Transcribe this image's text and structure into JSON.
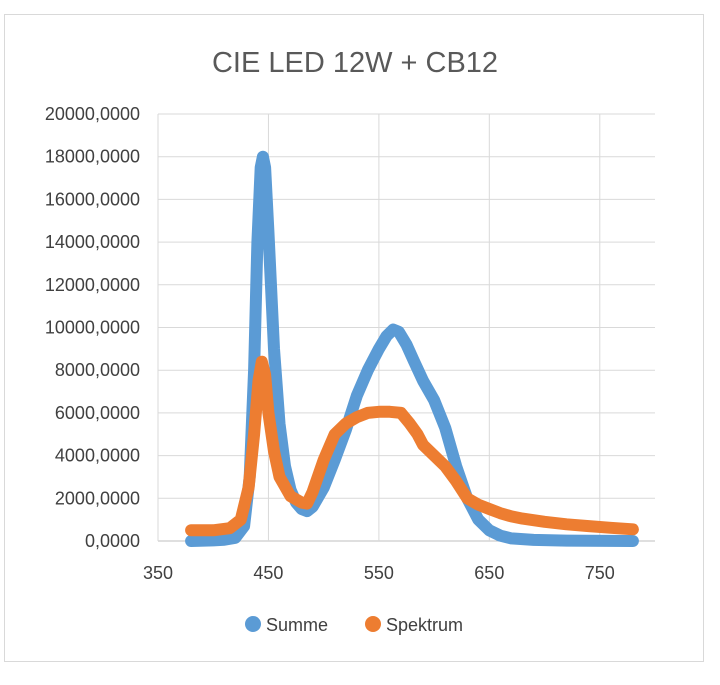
{
  "chart_data": {
    "type": "line",
    "title": "CIE LED 12W + CB12",
    "xlabel": "",
    "ylabel": "",
    "xlim": [
      350,
      800
    ],
    "ylim": [
      0,
      20000
    ],
    "x_ticks": [
      350,
      450,
      550,
      650,
      750
    ],
    "x_tick_labels": [
      "350",
      "450",
      "550",
      "650",
      "750"
    ],
    "y_ticks": [
      0,
      2000,
      4000,
      6000,
      8000,
      10000,
      12000,
      14000,
      16000,
      18000,
      20000
    ],
    "y_tick_labels": [
      "0,0000",
      "2000,0000",
      "4000,0000",
      "6000,0000",
      "8000,0000",
      "10000,0000",
      "12000,0000",
      "14000,0000",
      "16000,0000",
      "18000,0000",
      "20000,0000"
    ],
    "grid": true,
    "legend_position": "bottom",
    "series": [
      {
        "name": "Summe",
        "color": "#5b9bd5",
        "points": [
          [
            380,
            0
          ],
          [
            400,
            30
          ],
          [
            410,
            60
          ],
          [
            420,
            150
          ],
          [
            428,
            700
          ],
          [
            433,
            3000
          ],
          [
            437,
            8000
          ],
          [
            440,
            14000
          ],
          [
            443,
            17500
          ],
          [
            445,
            18000
          ],
          [
            447,
            17500
          ],
          [
            450,
            14500
          ],
          [
            455,
            9000
          ],
          [
            460,
            5500
          ],
          [
            465,
            3500
          ],
          [
            470,
            2400
          ],
          [
            475,
            1800
          ],
          [
            480,
            1500
          ],
          [
            485,
            1400
          ],
          [
            490,
            1600
          ],
          [
            500,
            2500
          ],
          [
            510,
            3800
          ],
          [
            520,
            5200
          ],
          [
            530,
            6800
          ],
          [
            540,
            8000
          ],
          [
            550,
            9000
          ],
          [
            557,
            9600
          ],
          [
            563,
            9900
          ],
          [
            568,
            9800
          ],
          [
            575,
            9200
          ],
          [
            582,
            8400
          ],
          [
            590,
            7500
          ],
          [
            600,
            6600
          ],
          [
            610,
            5300
          ],
          [
            620,
            3500
          ],
          [
            630,
            2000
          ],
          [
            640,
            1000
          ],
          [
            650,
            500
          ],
          [
            660,
            250
          ],
          [
            670,
            120
          ],
          [
            690,
            50
          ],
          [
            720,
            20
          ],
          [
            780,
            0
          ]
        ]
      },
      {
        "name": "Spektrum",
        "color": "#ed7d31",
        "points": [
          [
            380,
            500
          ],
          [
            400,
            500
          ],
          [
            415,
            600
          ],
          [
            425,
            1000
          ],
          [
            432,
            2500
          ],
          [
            437,
            5000
          ],
          [
            441,
            7500
          ],
          [
            444,
            8400
          ],
          [
            447,
            7800
          ],
          [
            450,
            6000
          ],
          [
            455,
            4200
          ],
          [
            460,
            3000
          ],
          [
            470,
            2100
          ],
          [
            480,
            1800
          ],
          [
            485,
            1750
          ],
          [
            490,
            2300
          ],
          [
            500,
            3800
          ],
          [
            510,
            5000
          ],
          [
            520,
            5500
          ],
          [
            530,
            5800
          ],
          [
            540,
            6000
          ],
          [
            550,
            6050
          ],
          [
            560,
            6050
          ],
          [
            570,
            6000
          ],
          [
            578,
            5500
          ],
          [
            585,
            5000
          ],
          [
            590,
            4500
          ],
          [
            600,
            4000
          ],
          [
            610,
            3500
          ],
          [
            620,
            2800
          ],
          [
            630,
            2000
          ],
          [
            640,
            1700
          ],
          [
            650,
            1500
          ],
          [
            660,
            1300
          ],
          [
            670,
            1150
          ],
          [
            680,
            1050
          ],
          [
            700,
            900
          ],
          [
            720,
            780
          ],
          [
            740,
            700
          ],
          [
            760,
            620
          ],
          [
            780,
            550
          ]
        ]
      }
    ]
  }
}
